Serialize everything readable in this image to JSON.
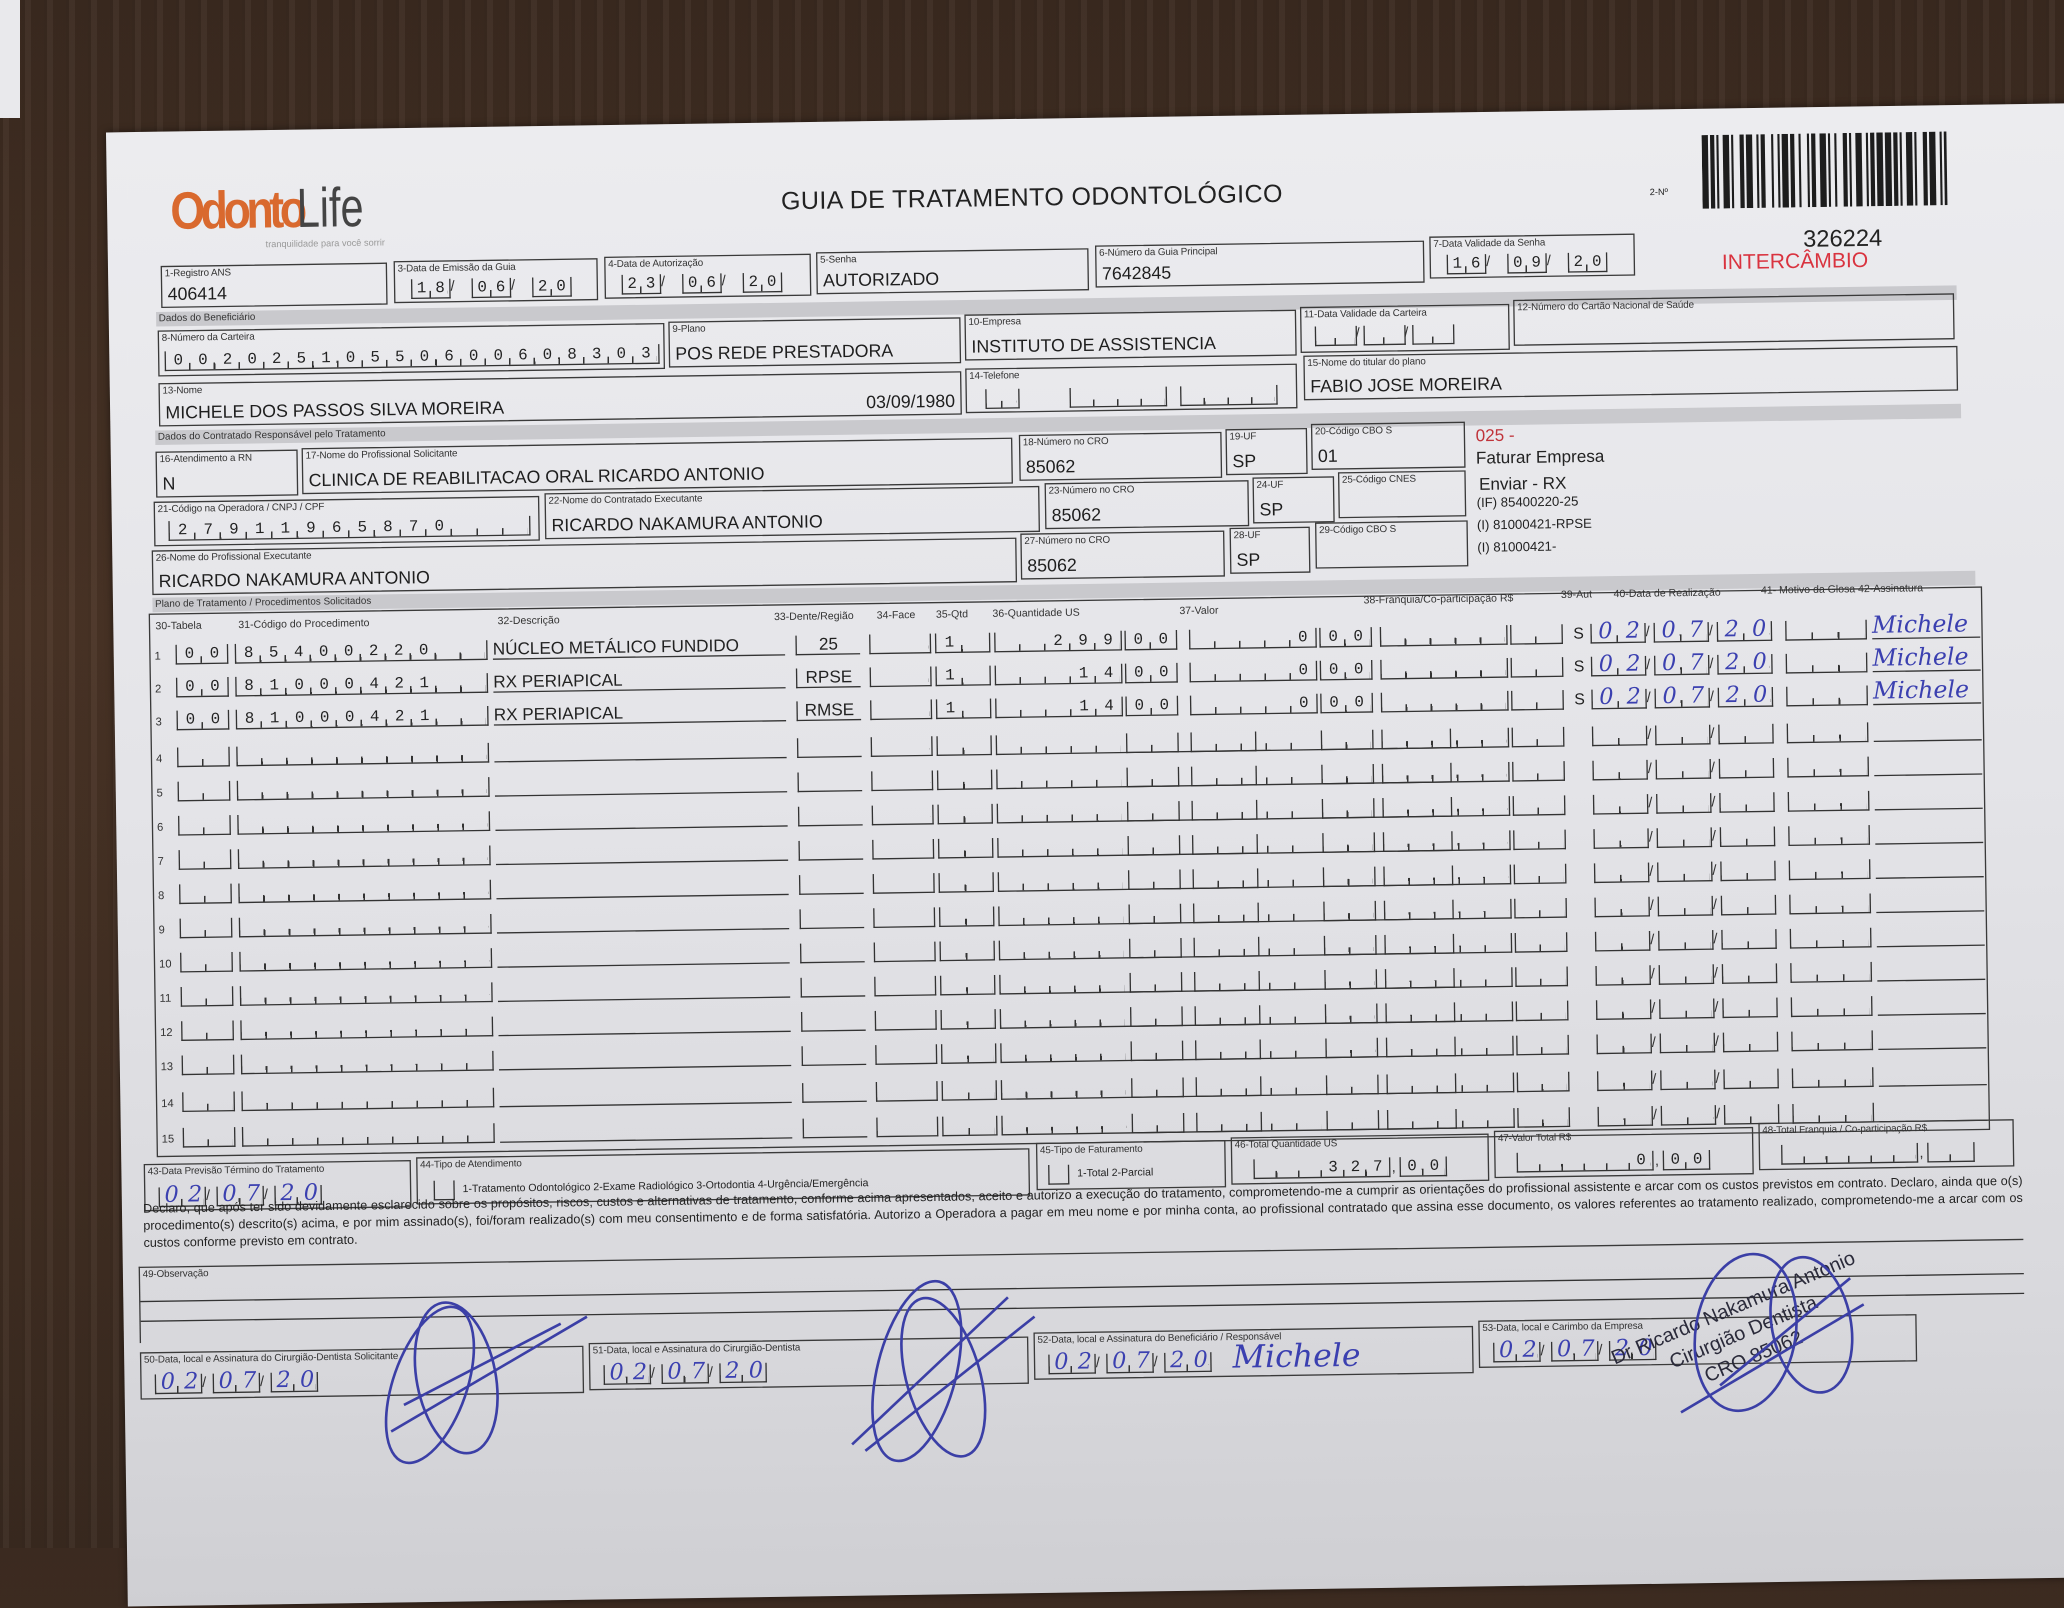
{
  "logo": {
    "brand_part1": "Odonto",
    "brand_part2": "Life",
    "tagline": "tranquilidade para você sorrir"
  },
  "title": "GUIA DE TRATAMENTO ODONTOLÓGICO",
  "guide_number_label": "2-Nº",
  "guide_number": "326224",
  "intercambio": "INTERCÂMBIO",
  "colors": {
    "brand_orange": "#d9692e",
    "intercambio_red": "#d9333f",
    "handwriting_blue": "#3b40b0"
  },
  "header": {
    "registro_ans": {
      "label": "1-Registro ANS",
      "value": "406414"
    },
    "data_emissao": {
      "label": "3-Data de Emissão da Guia",
      "day": "18",
      "month": "06",
      "year": "20"
    },
    "data_autorizacao": {
      "label": "4-Data de Autorização",
      "day": "23",
      "month": "06",
      "year": "20"
    },
    "senha": {
      "label": "5-Senha",
      "value": "AUTORIZADO"
    },
    "numero_guia_principal": {
      "label": "6-Número da Guia Principal",
      "value": "7642845"
    },
    "data_validade_senha": {
      "label": "7-Data Validade da Senha",
      "day": "16",
      "month": "09",
      "year": "20"
    }
  },
  "beneficiario": {
    "section_label": "Dados do Beneficiário",
    "numero_carteira": {
      "label": "8-Número da Carteira",
      "value": "00202510550600608303"
    },
    "plano": {
      "label": "9-Plano",
      "value": "POS REDE PRESTADORA"
    },
    "empresa": {
      "label": "10-Empresa",
      "value": "INSTITUTO DE ASSISTENCIA"
    },
    "data_validade_carteira": {
      "label": "11-Data Validade da Carteira"
    },
    "cartao_nacional_saude": {
      "label": "12-Número do Cartão Nacional de Saúde"
    },
    "nome": {
      "label": "13-Nome",
      "value": "MICHELE DOS PASSOS SILVA MOREIRA",
      "birth_date": "03/09/1980"
    },
    "telefone": {
      "label": "14-Telefone"
    },
    "titular": {
      "label": "15-Nome do titular do plano",
      "value": "FABIO JOSE MOREIRA"
    }
  },
  "contratado": {
    "section_label": "Dados do Contratado Responsável pelo Tratamento",
    "atendimento_rn": {
      "label": "16-Atendimento a RN",
      "value": "N"
    },
    "profissional_solicitante": {
      "label": "17-Nome do Profissional Solicitante",
      "value": "CLINICA DE REABILITACAO ORAL RICARDO ANTONIO"
    },
    "cro_18": {
      "label": "18-Número no CRO",
      "value": "85062"
    },
    "uf_19": {
      "label": "19-UF",
      "value": "SP"
    },
    "cbo_20": {
      "label": "20-Código CBO S",
      "value": "01"
    },
    "codigo_operadora": {
      "label": "21-Código na Operadora / CNPJ / CPF",
      "value": "27911965870"
    },
    "contratado_executante": {
      "label": "22-Nome do Contratado Executante",
      "value": "RICARDO NAKAMURA ANTONIO"
    },
    "cro_23": {
      "label": "23-Número no CRO",
      "value": "85062"
    },
    "uf_24": {
      "label": "24-UF",
      "value": "SP"
    },
    "cnes_25": {
      "label": "25-Código CNES"
    },
    "profissional_executante": {
      "label": "26-Nome do Profissional Executante",
      "value": "RICARDO NAKAMURA ANTONIO"
    },
    "cro_27": {
      "label": "27-Número no CRO",
      "value": "85062"
    },
    "uf_28": {
      "label": "28-UF",
      "value": "SP"
    },
    "cbo_29": {
      "label": "29-Código CBO S"
    }
  },
  "side_notes": {
    "code": "025 -",
    "line1": "Faturar Empresa",
    "line2": "Enviar - RX",
    "line3": "(IF) 85400220-25",
    "line4": "(I) 81000421-RPSE",
    "line5": "(I) 81000421-"
  },
  "procedures": {
    "section_label": "Plano de Tratamento / Procedimentos Solicitados",
    "headers": {
      "tabela": "30-Tabela",
      "codigo": "31-Código do Procedimento",
      "descricao": "32-Descrição",
      "dente": "33-Dente/Região",
      "face": "34-Face",
      "qtd": "35-Qtd",
      "qtd_us": "36-Quantidade US",
      "valor": "37-Valor",
      "franquia": "38-Franquia/Co-participação R$",
      "aut": "39-Aut",
      "data": "40-Data de Realização",
      "motivo_assinatura": "41- Motivo da Glosa 42-Assinatura"
    },
    "rows": [
      {
        "num": "1",
        "tabela": "00",
        "codigo": "85400220",
        "descricao": "NÚCLEO METÁLICO FUNDIDO",
        "dente": "25",
        "qtd": "1",
        "qtd_us_int": "299",
        "qtd_us_dec": "00",
        "valor_int": "0",
        "valor_dec": "00",
        "aut": "S",
        "dia": "02",
        "mes": "07",
        "ano": "20",
        "assinatura": "Michele"
      },
      {
        "num": "2",
        "tabela": "00",
        "codigo": "81000421",
        "descricao": "RX PERIAPICAL",
        "dente": "RPSE",
        "qtd": "1",
        "qtd_us_int": "14",
        "qtd_us_dec": "00",
        "valor_int": "0",
        "valor_dec": "00",
        "aut": "S",
        "dia": "02",
        "mes": "07",
        "ano": "20",
        "assinatura": "Michele"
      },
      {
        "num": "3",
        "tabela": "00",
        "codigo": "81000421",
        "descricao": "RX PERIAPICAL",
        "dente": "RMSE",
        "qtd": "1",
        "qtd_us_int": "14",
        "qtd_us_dec": "00",
        "valor_int": "0",
        "valor_dec": "00",
        "aut": "S",
        "dia": "02",
        "mes": "07",
        "ano": "20",
        "assinatura": "Michele"
      },
      {
        "num": "4"
      },
      {
        "num": "5"
      },
      {
        "num": "6"
      },
      {
        "num": "7"
      },
      {
        "num": "8"
      },
      {
        "num": "9"
      },
      {
        "num": "10"
      },
      {
        "num": "11"
      },
      {
        "num": "12"
      },
      {
        "num": "13"
      },
      {
        "num": "14"
      },
      {
        "num": "15"
      }
    ]
  },
  "footer": {
    "previsao_termino": {
      "label": "43-Data Previsão Término do Tratamento",
      "day": "02",
      "month": "07",
      "year": "20"
    },
    "tipo_atendimento": {
      "label": "44-Tipo de Atendimento",
      "options": "1-Tratamento Odontológico  2-Exame Radiológico  3-Ortodontia  4-Urgência/Emergência"
    },
    "tipo_faturamento": {
      "label": "45-Tipo de Faturamento",
      "options": "1-Total  2-Parcial"
    },
    "total_quantidade_us": {
      "label": "46-Total Quantidade US",
      "int": "327",
      "dec": "00"
    },
    "valor_total": {
      "label": "47-Valor Total R$",
      "int": "0",
      "dec": "00"
    },
    "total_franquia": {
      "label": "48-Total Franquia / Co-participação R$"
    },
    "declaration": "Declaro, que após ter sido devidamente esclarecido sobre os propósitos, riscos, custos e alternativas de tratamento, conforme acima apresentados, aceito e autorizo a execução do tratamento, comprometendo-me a cumprir as orientações do profissional assistente e arcar com os custos previstos em contrato. Declaro, ainda que o(s) procedimento(s) descrito(s) acima, e por mim assinado(s), foi/foram realizado(s) com meu consentimento e de forma satisfatória. Autorizo a Operadora a pagar em meu nome e por minha conta, ao profissional contratado que assina esse documento, os valores referentes ao tratamento realizado, comprometendo-me a arcar com os custos conforme previsto em contrato.",
    "observacao": {
      "label": "49-Observação"
    },
    "sig50": {
      "label": "50-Data, local e Assinatura do Cirurgião-Dentista Solicitante",
      "day": "02",
      "month": "07",
      "year": "20"
    },
    "sig51": {
      "label": "51-Data, local e Assinatura do Cirurgião-Dentista",
      "day": "02",
      "month": "07",
      "year": "20"
    },
    "sig52": {
      "label": "52-Data, local e Assinatura do Beneficiário / Responsável",
      "day": "02",
      "month": "07",
      "year": "20",
      "signature": "Michele"
    },
    "sig53": {
      "label": "53-Data, local e Carimbo da Empresa",
      "day": "02",
      "month": "07",
      "year": "20"
    }
  },
  "stamp": {
    "line1": "Dr Ricardo Nakamura Antonio",
    "line2": "Cirurgião Dentista",
    "line3": "CRO 85062"
  }
}
